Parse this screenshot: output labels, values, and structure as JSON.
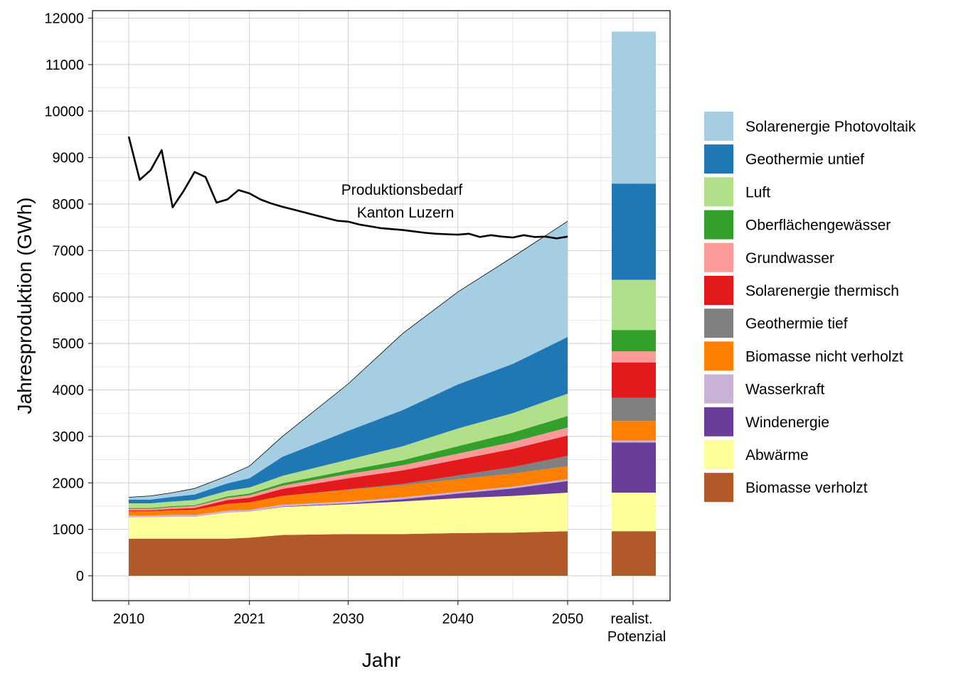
{
  "chart_data": {
    "type": "area",
    "xlabel": "Jahr",
    "ylabel": "Jahresproduktion (GWh)",
    "ylim": [
      -550,
      12200
    ],
    "y_ticks": [
      0,
      1000,
      2000,
      3000,
      4000,
      5000,
      6000,
      7000,
      8000,
      9000,
      10000,
      11000,
      12000
    ],
    "x_ticks": [
      "2010",
      "2021",
      "2030",
      "2040",
      "2050"
    ],
    "extra_category_label_line1": "realist.",
    "extra_category_label_line2": "Potenzial",
    "grid": true,
    "legend_position": "right",
    "annotation_line1": "Produktionsbedarf",
    "annotation_line2": "Kanton Luzern",
    "x": [
      2010,
      2012,
      2014,
      2016,
      2019,
      2021,
      2024,
      2030,
      2035,
      2040,
      2045,
      2050
    ],
    "series": [
      {
        "name": "Biomasse verholzt",
        "color": "#B15928",
        "values": [
          800,
          800,
          800,
          800,
          800,
          820,
          880,
          900,
          900,
          920,
          930,
          960
        ]
      },
      {
        "name": "Abwärme",
        "color": "#FFFF99",
        "values": [
          460,
          460,
          470,
          470,
          560,
          560,
          600,
          640,
          700,
          750,
          790,
          830
        ]
      },
      {
        "name": "Windenergie",
        "color": "#6A3D9A",
        "values": [
          0,
          0,
          0,
          0,
          0,
          0,
          10,
          20,
          50,
          100,
          160,
          250
        ]
      },
      {
        "name": "Wasserkraft",
        "color": "#CAB2D6",
        "values": [
          40,
          40,
          40,
          40,
          40,
          40,
          40,
          40,
          40,
          40,
          40,
          40
        ]
      },
      {
        "name": "Biomasse nicht verholzt",
        "color": "#FF7F00",
        "values": [
          90,
          90,
          100,
          110,
          150,
          160,
          190,
          250,
          260,
          270,
          280,
          280
        ]
      },
      {
        "name": "Geothermie tief",
        "color": "#808080",
        "values": [
          0,
          0,
          0,
          0,
          0,
          0,
          0,
          10,
          30,
          80,
          140,
          220
        ]
      },
      {
        "name": "Solarenergie thermisch",
        "color": "#E31A1C",
        "values": [
          20,
          20,
          30,
          40,
          80,
          100,
          150,
          240,
          290,
          340,
          390,
          440
        ]
      },
      {
        "name": "Grundwasser",
        "color": "#FB9A99",
        "values": [
          30,
          30,
          40,
          40,
          50,
          55,
          70,
          90,
          110,
          130,
          150,
          170
        ]
      },
      {
        "name": "Oberflächengewässer",
        "color": "#33A02C",
        "values": [
          20,
          20,
          20,
          20,
          30,
          35,
          50,
          80,
          110,
          160,
          200,
          250
        ]
      },
      {
        "name": "Luft",
        "color": "#B2DF8A",
        "values": [
          100,
          100,
          100,
          110,
          120,
          130,
          160,
          230,
          300,
          380,
          420,
          480
        ]
      },
      {
        "name": "Geothermie untief",
        "color": "#1F78B4",
        "values": [
          80,
          80,
          100,
          120,
          160,
          200,
          410,
          620,
          780,
          950,
          1060,
          1220
        ]
      },
      {
        "name": "Solarenergie Photovoltaik",
        "color": "#A6CEE3",
        "values": [
          50,
          80,
          90,
          130,
          160,
          260,
          440,
          1010,
          1650,
          1990,
          2300,
          2490
        ]
      }
    ],
    "potential": [
      960,
      830,
      1080,
      40,
      420,
      500,
      760,
      240,
      460,
      1080,
      2070,
      3270
    ],
    "demand_line": {
      "name": "Produktionsbedarf Kanton Luzern",
      "x": [
        2010,
        2011,
        2012,
        2013,
        2014,
        2015,
        2016,
        2017,
        2018,
        2019,
        2020,
        2021,
        2022,
        2023,
        2024,
        2025,
        2026,
        2027,
        2028,
        2029,
        2030,
        2031,
        2032,
        2033,
        2034,
        2035,
        2036,
        2037,
        2038,
        2039,
        2040,
        2041,
        2042,
        2043,
        2044,
        2045,
        2046,
        2047,
        2048,
        2049,
        2050
      ],
      "values": [
        9450,
        8520,
        8730,
        9160,
        7930,
        8280,
        8690,
        8580,
        8030,
        8100,
        8300,
        8230,
        8100,
        8010,
        7940,
        7880,
        7820,
        7760,
        7700,
        7640,
        7620,
        7560,
        7520,
        7480,
        7460,
        7440,
        7410,
        7380,
        7360,
        7350,
        7340,
        7360,
        7290,
        7330,
        7300,
        7280,
        7330,
        7290,
        7300,
        7260,
        7300
      ]
    }
  }
}
